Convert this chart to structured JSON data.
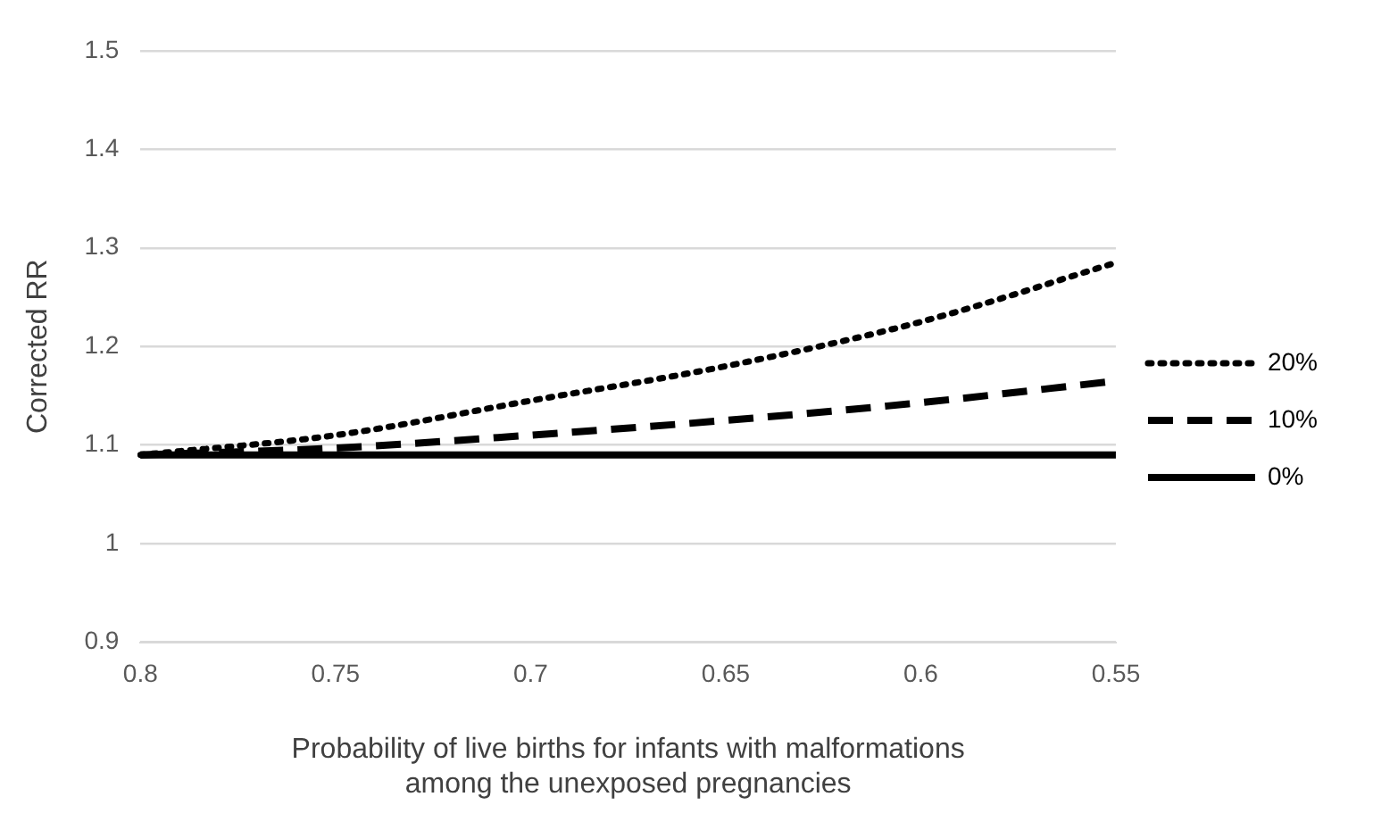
{
  "chart_data": {
    "type": "line",
    "xlabel": "Probability of live births for infants with malformations\namong the unexposed pregnancies",
    "ylabel": "Corrected RR",
    "categories": [
      "0.8",
      "0.75",
      "0.7",
      "0.65",
      "0.6",
      "0.55"
    ],
    "series": [
      {
        "name": "20%",
        "color": "#000000",
        "line_style": "dotted",
        "values": [
          1.09,
          1.11,
          1.145,
          1.18,
          1.225,
          1.285
        ]
      },
      {
        "name": "10%",
        "color": "#000000",
        "line_style": "dashed",
        "values": [
          1.09,
          1.097,
          1.11,
          1.125,
          1.143,
          1.165
        ]
      },
      {
        "name": "0%",
        "color": "#000000",
        "line_style": "solid",
        "values": [
          1.09,
          1.09,
          1.09,
          1.09,
          1.09,
          1.09
        ]
      }
    ],
    "ylim": [
      0.9,
      1.5
    ],
    "yticks": [
      0.9,
      1,
      1.1,
      1.2,
      1.3,
      1.4,
      1.5
    ],
    "grid": "y",
    "legend": "right",
    "marker": "none"
  }
}
